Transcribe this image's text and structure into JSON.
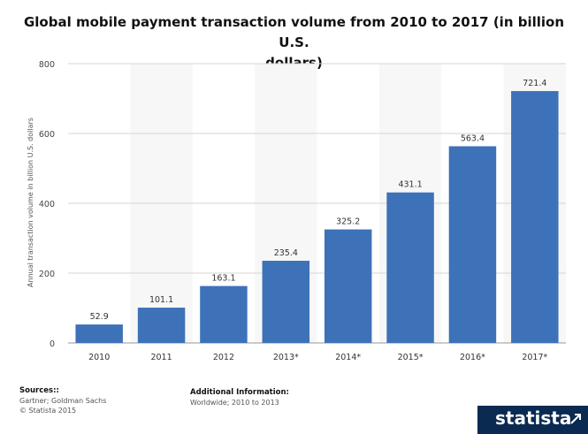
{
  "chart_data": {
    "type": "bar",
    "title": "Global mobile payment transaction volume from 2010 to 2017 (in billion U.S. dollars)",
    "title_lines": [
      "Global mobile payment transaction volume from 2010 to 2017 (in billion U.S.",
      "dollars)"
    ],
    "ylabel": "Annual transaction volume in billion U.S. dollars",
    "xlabel": "",
    "categories": [
      "2010",
      "2011",
      "2012",
      "2013*",
      "2014*",
      "2015*",
      "2016*",
      "2017*"
    ],
    "values": [
      52.9,
      101.1,
      163.1,
      235.4,
      325.2,
      431.1,
      563.4,
      721.4
    ],
    "value_labels": [
      "52.9",
      "101.1",
      "163.1",
      "235.4",
      "325.2",
      "431.1",
      "563.4",
      "721.4"
    ],
    "ylim": [
      0,
      800
    ],
    "yticks": [
      0,
      200,
      400,
      600,
      800
    ],
    "grid": true,
    "bar_color": "#3d72b8",
    "alt_band_color": "#f7f7f7"
  },
  "footer": {
    "sources_heading": "Sources::",
    "sources_text": "Gartner; Goldman Sachs",
    "copyright": "© Statista 2015",
    "additional_heading": "Additional Information:",
    "additional_text": "Worldwide; 2010 to 2013"
  },
  "brand": {
    "name": "statista",
    "bar_color": "#0a2a52"
  }
}
